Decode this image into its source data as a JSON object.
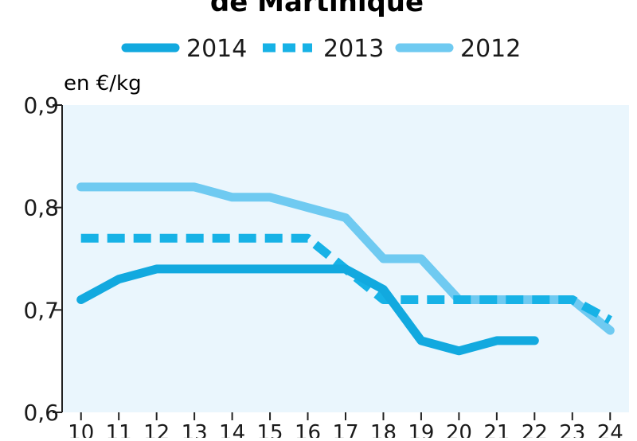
{
  "chart_data": {
    "type": "line",
    "title": "de Martinique",
    "ylabel": "en €/kg",
    "xlabel": "",
    "x": [
      10,
      11,
      12,
      13,
      14,
      15,
      16,
      17,
      18,
      19,
      20,
      21,
      22,
      23,
      24
    ],
    "x_tick_labels": [
      "10",
      "11",
      "12",
      "13",
      "14",
      "15",
      "16",
      "17",
      "18",
      "19",
      "20",
      "21",
      "22",
      "23",
      "24"
    ],
    "ylim": [
      0.6,
      0.9
    ],
    "y_ticks": [
      0.6,
      0.7,
      0.8,
      0.9
    ],
    "y_tick_labels": [
      "0,6",
      "0,7",
      "0,8",
      "0,9"
    ],
    "legend_position": "top",
    "grid": false,
    "series": [
      {
        "name": "2014",
        "style": "solid",
        "color": "#12a9df",
        "x": [
          10,
          11,
          12,
          13,
          14,
          15,
          16,
          17,
          18,
          19,
          20,
          21,
          22
        ],
        "values": [
          0.71,
          0.73,
          0.74,
          0.74,
          0.74,
          0.74,
          0.74,
          0.74,
          0.72,
          0.67,
          0.66,
          0.67,
          0.67
        ]
      },
      {
        "name": "2013",
        "style": "dashed",
        "color": "#17b2e6",
        "x": [
          10,
          11,
          12,
          13,
          14,
          15,
          16,
          17,
          18,
          19,
          20,
          21,
          22,
          23,
          24
        ],
        "values": [
          0.77,
          0.77,
          0.77,
          0.77,
          0.77,
          0.77,
          0.77,
          0.74,
          0.71,
          0.71,
          0.71,
          0.71,
          0.71,
          0.71,
          0.69
        ]
      },
      {
        "name": "2012",
        "style": "solid",
        "color": "#6fcaf1",
        "x": [
          10,
          11,
          12,
          13,
          14,
          15,
          16,
          17,
          18,
          19,
          20,
          21,
          22,
          23,
          24
        ],
        "values": [
          0.82,
          0.82,
          0.82,
          0.82,
          0.81,
          0.81,
          0.8,
          0.79,
          0.75,
          0.75,
          0.71,
          0.71,
          0.71,
          0.71,
          0.68
        ]
      }
    ],
    "colors": {
      "plot_background": "#eaf6fd",
      "axis": "#222222",
      "text": "#1a1a1a"
    }
  }
}
